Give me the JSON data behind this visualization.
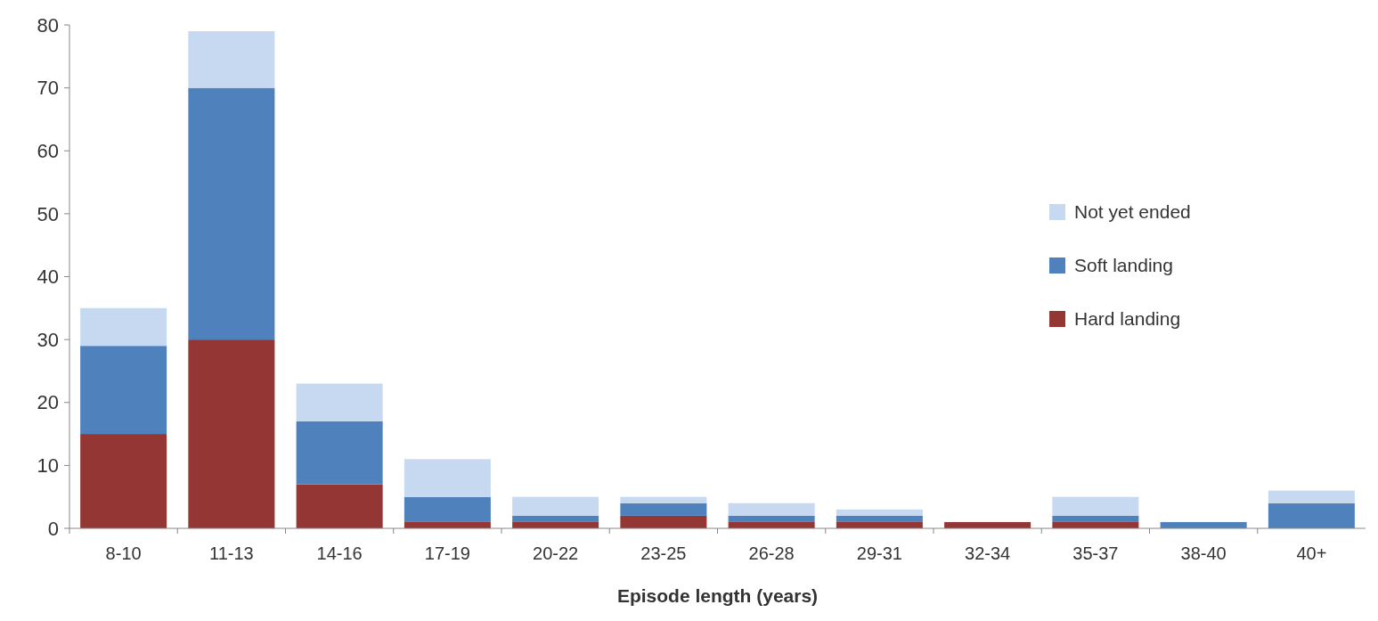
{
  "chart_data": {
    "type": "bar",
    "stacked": true,
    "xlabel": "Episode length (years)",
    "categories": [
      "8-10",
      "11-13",
      "14-16",
      "17-19",
      "20-22",
      "23-25",
      "26-28",
      "29-31",
      "32-34",
      "35-37",
      "38-40",
      "40+"
    ],
    "series": [
      {
        "name": "Hard landing",
        "color": "#943634",
        "values": [
          15,
          30,
          7,
          1,
          1,
          2,
          1,
          1,
          1,
          1,
          0,
          0
        ]
      },
      {
        "name": "Soft landing",
        "color": "#4f81bd",
        "values": [
          14,
          40,
          10,
          4,
          1,
          2,
          1,
          1,
          0,
          1,
          1,
          4
        ]
      },
      {
        "name": "Not yet ended",
        "color": "#c6d9f1",
        "values": [
          6,
          9,
          6,
          6,
          3,
          1,
          2,
          1,
          0,
          3,
          0,
          2
        ]
      }
    ],
    "ylim": [
      0,
      80
    ],
    "yticks": [
      0,
      10,
      20,
      30,
      40,
      50,
      60,
      70,
      80
    ],
    "grid": false,
    "legend": "right"
  }
}
